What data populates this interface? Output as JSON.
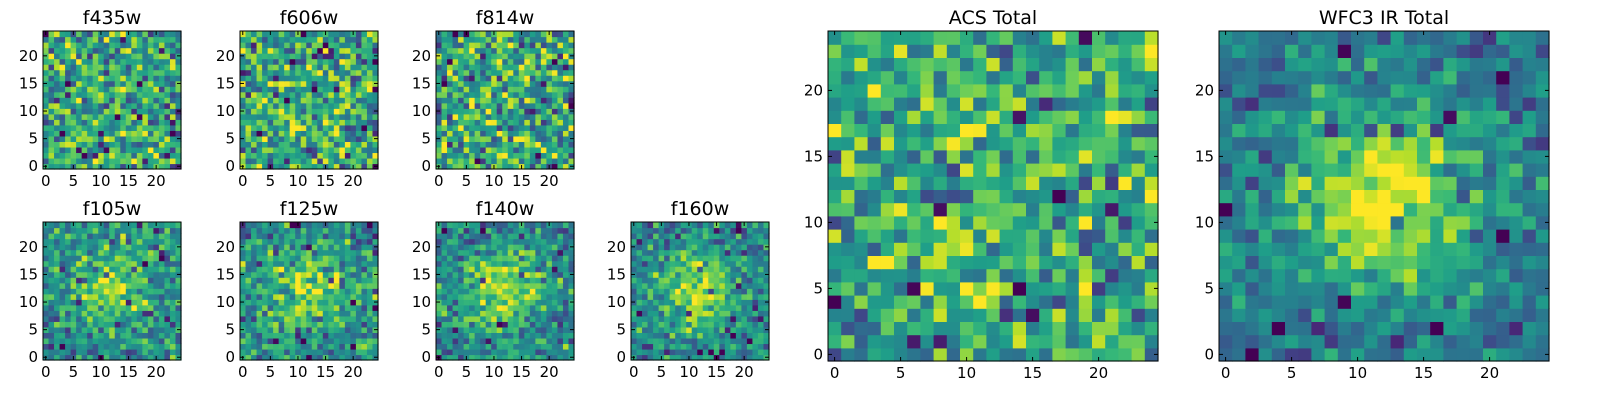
{
  "chart_data": [
    {
      "type": "heatmap",
      "title": "f435w",
      "x_ticks": [
        "0",
        "5",
        "10",
        "15",
        "20"
      ],
      "y_ticks": [
        "0",
        "5",
        "10",
        "15",
        "20"
      ],
      "xlim": [
        0,
        25
      ],
      "ylim": [
        0,
        25
      ],
      "colormap": "viridis",
      "grid_size": 25,
      "signal_strength": 0.05
    },
    {
      "type": "heatmap",
      "title": "f606w",
      "x_ticks": [
        "0",
        "5",
        "10",
        "15",
        "20"
      ],
      "y_ticks": [
        "0",
        "5",
        "10",
        "15",
        "20"
      ],
      "xlim": [
        0,
        25
      ],
      "ylim": [
        0,
        25
      ],
      "colormap": "viridis",
      "grid_size": 25,
      "signal_strength": 0.05
    },
    {
      "type": "heatmap",
      "title": "f814w",
      "x_ticks": [
        "0",
        "5",
        "10",
        "15",
        "20"
      ],
      "y_ticks": [
        "0",
        "5",
        "10",
        "15",
        "20"
      ],
      "xlim": [
        0,
        25
      ],
      "ylim": [
        0,
        25
      ],
      "colormap": "viridis",
      "grid_size": 25,
      "signal_strength": 0.05
    },
    {
      "type": "heatmap",
      "title": "f105w",
      "x_ticks": [
        "0",
        "5",
        "10",
        "15",
        "20"
      ],
      "y_ticks": [
        "0",
        "5",
        "10",
        "15",
        "20"
      ],
      "xlim": [
        0,
        25
      ],
      "ylim": [
        0,
        25
      ],
      "colormap": "viridis",
      "grid_size": 25,
      "signal_strength": 0.35
    },
    {
      "type": "heatmap",
      "title": "f125w",
      "x_ticks": [
        "0",
        "5",
        "10",
        "15",
        "20"
      ],
      "y_ticks": [
        "0",
        "5",
        "10",
        "15",
        "20"
      ],
      "xlim": [
        0,
        25
      ],
      "ylim": [
        0,
        25
      ],
      "colormap": "viridis",
      "grid_size": 25,
      "signal_strength": 0.35
    },
    {
      "type": "heatmap",
      "title": "f140w",
      "x_ticks": [
        "0",
        "5",
        "10",
        "15",
        "20"
      ],
      "y_ticks": [
        "0",
        "5",
        "10",
        "15",
        "20"
      ],
      "xlim": [
        0,
        25
      ],
      "ylim": [
        0,
        25
      ],
      "colormap": "viridis",
      "grid_size": 25,
      "signal_strength": 0.4
    },
    {
      "type": "heatmap",
      "title": "f160w",
      "x_ticks": [
        "0",
        "5",
        "10",
        "15",
        "20"
      ],
      "y_ticks": [
        "0",
        "5",
        "10",
        "15",
        "20"
      ],
      "xlim": [
        0,
        25
      ],
      "ylim": [
        0,
        25
      ],
      "colormap": "viridis",
      "grid_size": 25,
      "signal_strength": 0.45
    },
    {
      "type": "heatmap",
      "title": "ACS Total",
      "x_ticks": [
        "0",
        "5",
        "10",
        "15",
        "20"
      ],
      "y_ticks": [
        "0",
        "5",
        "10",
        "15",
        "20"
      ],
      "xlim": [
        0,
        25
      ],
      "ylim": [
        0,
        25
      ],
      "colormap": "viridis",
      "grid_size": 25,
      "signal_strength": 0.1
    },
    {
      "type": "heatmap",
      "title": "WFC3 IR Total",
      "x_ticks": [
        "0",
        "5",
        "10",
        "15",
        "20"
      ],
      "y_ticks": [
        "0",
        "5",
        "10",
        "15",
        "20"
      ],
      "xlim": [
        0,
        25
      ],
      "ylim": [
        0,
        25
      ],
      "colormap": "viridis",
      "grid_size": 25,
      "signal_strength": 0.6
    }
  ]
}
